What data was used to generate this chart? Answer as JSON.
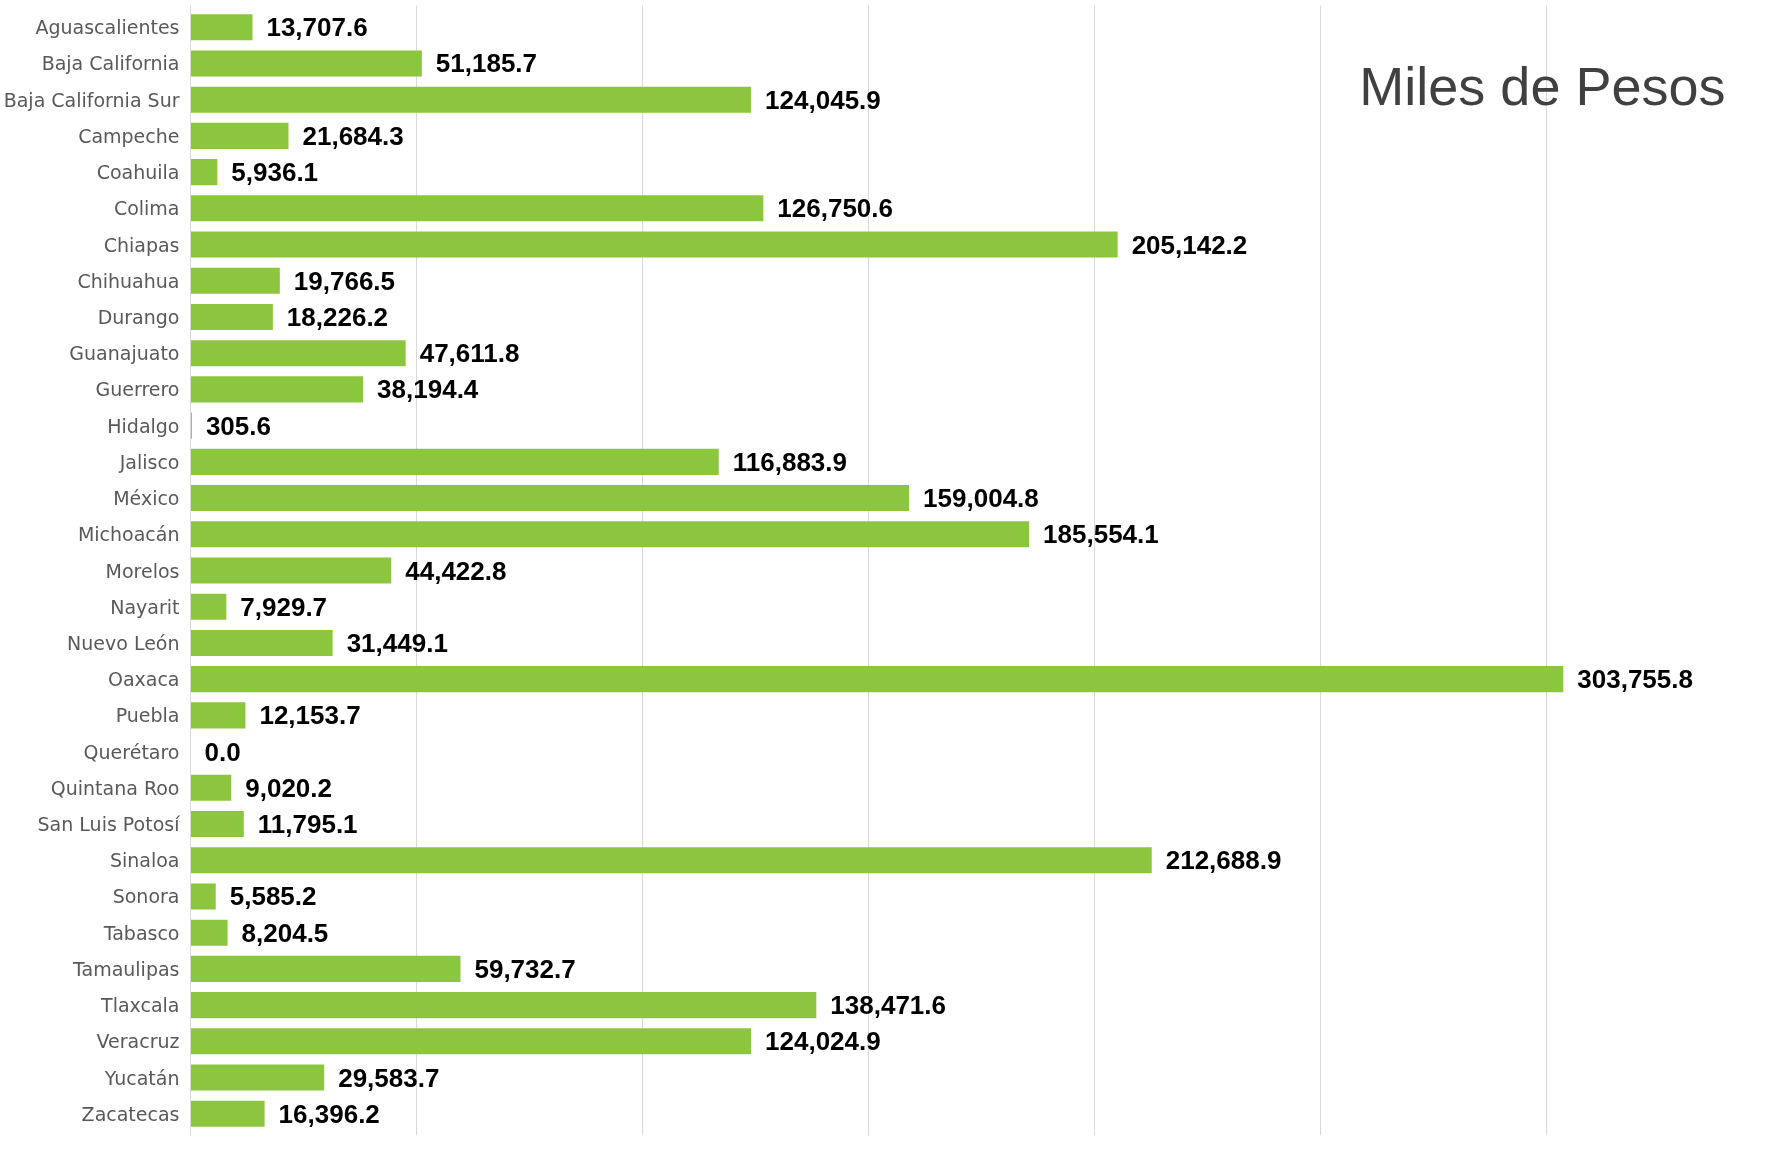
{
  "chart_data": {
    "type": "bar",
    "orientation": "horizontal",
    "title": "Miles de Pesos",
    "categories": [
      "Aguascalientes",
      "Baja California",
      "Baja California Sur",
      "Campeche",
      "Coahuila",
      "Colima",
      "Chiapas",
      "Chihuahua",
      "Durango",
      "Guanajuato",
      "Guerrero",
      "Hidalgo",
      "Jalisco",
      "México",
      "Michoacán",
      "Morelos",
      "Nayarit",
      "Nuevo León",
      "Oaxaca",
      "Puebla",
      "Querétaro",
      "Quintana Roo",
      "San Luis Potosí",
      "Sinaloa",
      "Sonora",
      "Tabasco",
      "Tamaulipas",
      "Tlaxcala",
      "Veracruz",
      "Yucatán",
      "Zacatecas"
    ],
    "values": [
      13707.6,
      51185.7,
      124045.9,
      21684.3,
      5936.1,
      126750.6,
      205142.2,
      19766.5,
      18226.2,
      47611.8,
      38194.4,
      305.6,
      116883.9,
      159004.8,
      185554.1,
      44422.8,
      7929.7,
      31449.1,
      303755.8,
      12153.7,
      0.0,
      9020.2,
      11795.1,
      212688.9,
      5585.2,
      8204.5,
      59732.7,
      138471.6,
      124024.9,
      29583.7,
      16396.2
    ],
    "value_labels": [
      "13,707.6",
      "51,185.7",
      "124,045.9",
      "21,684.3",
      "5,936.1",
      "126,750.6",
      "205,142.2",
      "19,766.5",
      "18,226.2",
      "47,611.8",
      "38,194.4",
      "305.6",
      "116,883.9",
      "159,004.8",
      "185,554.1",
      "44,422.8",
      "7,929.7",
      "31,449.1",
      "303,755.8",
      "12,153.7",
      "0.0",
      "9,020.2",
      "11,795.1",
      "212,688.9",
      "5,585.2",
      "8,204.5",
      "59,732.7",
      "138,471.6",
      "124,024.9",
      "29,583.7",
      "16,396.2"
    ],
    "color": "#8cc63f",
    "xticks": [
      {
        "value": 0,
        "label": null
      },
      {
        "value": 50000,
        "label": null
      },
      {
        "value": 100000,
        "label": null
      },
      {
        "value": 150000,
        "label": null
      },
      {
        "value": 200000,
        "label": null
      },
      {
        "value": 250000,
        "label": null
      },
      {
        "value": 300000,
        "label": null
      }
    ],
    "grid": "x",
    "tick_labels": "y"
  }
}
